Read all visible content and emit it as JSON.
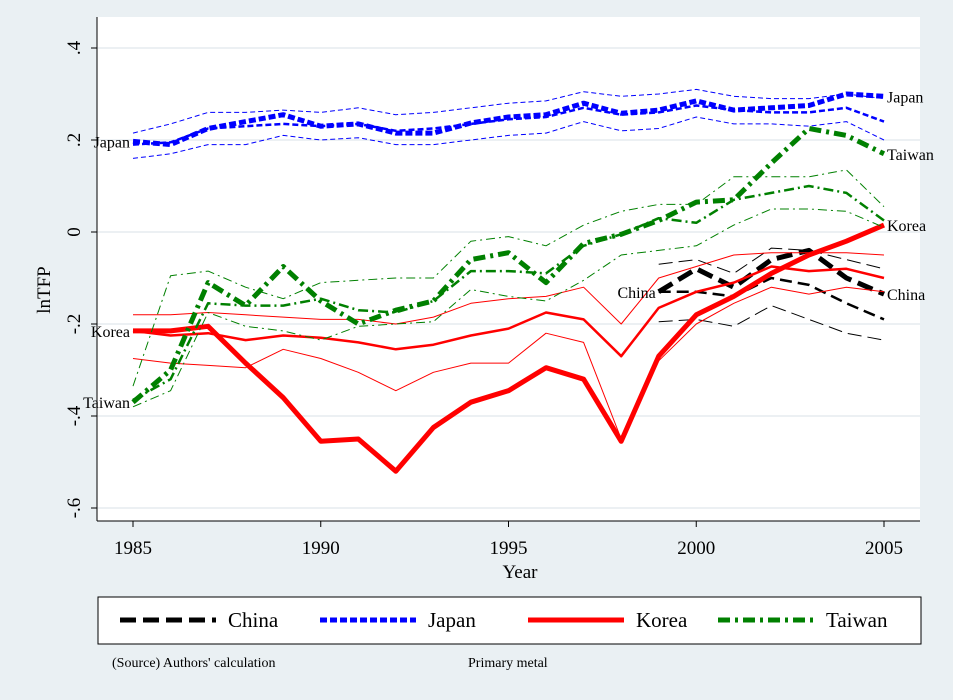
{
  "chart_data": {
    "type": "line",
    "title": "",
    "xlabel": "Year",
    "ylabel": "lnTFP",
    "xlim": [
      1985,
      2005
    ],
    "ylim": [
      -0.6,
      0.4
    ],
    "x_ticks": [
      1985,
      1990,
      1995,
      2000,
      2005
    ],
    "x_tick_labels": [
      "1985",
      "1990",
      "1995",
      "2000",
      "2005"
    ],
    "y_ticks": [
      -0.6,
      -0.4,
      -0.2,
      0,
      0.2,
      0.4
    ],
    "y_tick_labels": [
      "-.6",
      "-.4",
      "-.2",
      "0",
      ".2",
      ".4"
    ],
    "grid": true,
    "legend_position": "bottom",
    "series": [
      {
        "name": "China",
        "color": "#000000",
        "dash": "long-dash",
        "x": [
          1999,
          2000,
          2001,
          2002,
          2003,
          2004,
          2005
        ],
        "values": [
          -0.13,
          -0.08,
          -0.12,
          -0.06,
          -0.04,
          -0.1,
          -0.135
        ],
        "bands": [
          {
            "kind": "point",
            "values": [
              -0.13,
              -0.13,
              -0.14,
              -0.1,
              -0.115,
              -0.155,
              -0.19
            ]
          },
          {
            "kind": "upper",
            "values": [
              -0.07,
              -0.06,
              -0.09,
              -0.035,
              -0.04,
              -0.06,
              -0.08
            ]
          },
          {
            "kind": "lower",
            "values": [
              -0.195,
              -0.19,
              -0.205,
              -0.16,
              -0.19,
              -0.22,
              -0.235
            ]
          }
        ]
      },
      {
        "name": "Japan",
        "color": "#0000ff",
        "dash": "short-dash",
        "x": [
          1985,
          1986,
          1987,
          1988,
          1989,
          1990,
          1991,
          1992,
          1993,
          1994,
          1995,
          1996,
          1997,
          1998,
          1999,
          2000,
          2001,
          2002,
          2003,
          2004,
          2005
        ],
        "values": [
          0.197,
          0.19,
          0.225,
          0.24,
          0.255,
          0.23,
          0.235,
          0.215,
          0.215,
          0.237,
          0.25,
          0.255,
          0.28,
          0.258,
          0.265,
          0.285,
          0.265,
          0.27,
          0.275,
          0.3,
          0.295
        ],
        "bands": [
          {
            "kind": "point",
            "values": [
              0.19,
              0.195,
              0.225,
              0.23,
              0.235,
              0.23,
              0.235,
              0.22,
              0.225,
              0.235,
              0.245,
              0.25,
              0.27,
              0.255,
              0.26,
              0.275,
              0.265,
              0.26,
              0.26,
              0.27,
              0.24
            ]
          },
          {
            "kind": "upper",
            "values": [
              0.215,
              0.235,
              0.26,
              0.26,
              0.265,
              0.26,
              0.27,
              0.255,
              0.26,
              0.27,
              0.28,
              0.285,
              0.305,
              0.295,
              0.3,
              0.31,
              0.295,
              0.29,
              0.29,
              0.3,
              0.29
            ]
          },
          {
            "kind": "lower",
            "values": [
              0.16,
              0.17,
              0.19,
              0.19,
              0.21,
              0.2,
              0.205,
              0.19,
              0.19,
              0.2,
              0.21,
              0.215,
              0.24,
              0.22,
              0.225,
              0.25,
              0.235,
              0.235,
              0.23,
              0.24,
              0.2
            ]
          }
        ]
      },
      {
        "name": "Korea",
        "color": "#ff0000",
        "dash": "solid",
        "x": [
          1985,
          1986,
          1987,
          1988,
          1989,
          1990,
          1991,
          1992,
          1993,
          1994,
          1995,
          1996,
          1997,
          1998,
          1999,
          2000,
          2001,
          2002,
          2003,
          2004,
          2005
        ],
        "values": [
          -0.215,
          -0.215,
          -0.205,
          -0.285,
          -0.36,
          -0.455,
          -0.45,
          -0.52,
          -0.425,
          -0.37,
          -0.345,
          -0.295,
          -0.32,
          -0.455,
          -0.27,
          -0.18,
          -0.14,
          -0.09,
          -0.05,
          -0.02,
          0.015
        ],
        "bands": [
          {
            "kind": "point",
            "values": [
              -0.215,
              -0.225,
              -0.22,
              -0.235,
              -0.225,
              -0.23,
              -0.24,
              -0.255,
              -0.245,
              -0.225,
              -0.21,
              -0.175,
              -0.19,
              -0.27,
              -0.165,
              -0.13,
              -0.11,
              -0.075,
              -0.085,
              -0.08,
              -0.1
            ]
          },
          {
            "kind": "upper",
            "values": [
              -0.18,
              -0.18,
              -0.175,
              -0.18,
              -0.185,
              -0.19,
              -0.19,
              -0.2,
              -0.185,
              -0.155,
              -0.145,
              -0.14,
              -0.12,
              -0.2,
              -0.1,
              -0.075,
              -0.05,
              -0.045,
              -0.045,
              -0.045,
              -0.05
            ]
          },
          {
            "kind": "lower",
            "values": [
              -0.275,
              -0.285,
              -0.29,
              -0.295,
              -0.255,
              -0.275,
              -0.305,
              -0.345,
              -0.305,
              -0.285,
              -0.285,
              -0.22,
              -0.24,
              -0.45,
              -0.28,
              -0.2,
              -0.155,
              -0.12,
              -0.135,
              -0.12,
              -0.13
            ]
          }
        ]
      },
      {
        "name": "Taiwan",
        "color": "#008000",
        "dash": "dash-dot",
        "x": [
          1985,
          1986,
          1987,
          1988,
          1989,
          1990,
          1991,
          1992,
          1993,
          1994,
          1995,
          1996,
          1997,
          1998,
          1999,
          2000,
          2001,
          2002,
          2003,
          2004,
          2005
        ],
        "values": [
          -0.37,
          -0.3,
          -0.11,
          -0.16,
          -0.075,
          -0.15,
          -0.2,
          -0.17,
          -0.15,
          -0.06,
          -0.045,
          -0.11,
          -0.025,
          -0.005,
          0.025,
          0.065,
          0.07,
          0.15,
          0.225,
          0.21,
          0.17
        ],
        "bands": [
          {
            "kind": "point",
            "values": [
              -0.365,
              -0.32,
              -0.155,
              -0.16,
              -0.16,
              -0.145,
              -0.17,
              -0.175,
              -0.15,
              -0.085,
              -0.085,
              -0.09,
              -0.03,
              -0.005,
              0.03,
              0.02,
              0.07,
              0.085,
              0.1,
              0.085,
              0.025
            ]
          },
          {
            "kind": "upper",
            "values": [
              -0.335,
              -0.095,
              -0.085,
              -0.12,
              -0.145,
              -0.11,
              -0.105,
              -0.1,
              -0.1,
              -0.02,
              -0.01,
              -0.03,
              0.015,
              0.045,
              0.06,
              0.06,
              0.12,
              0.12,
              0.12,
              0.135,
              0.055
            ]
          },
          {
            "kind": "lower",
            "values": [
              -0.38,
              -0.345,
              -0.175,
              -0.205,
              -0.215,
              -0.235,
              -0.205,
              -0.2,
              -0.195,
              -0.125,
              -0.14,
              -0.15,
              -0.105,
              -0.05,
              -0.04,
              -0.03,
              0.015,
              0.05,
              0.05,
              0.045,
              0.01
            ]
          }
        ]
      }
    ],
    "line_labels": [
      {
        "text": "Japan",
        "series": "Japan",
        "at": "start"
      },
      {
        "text": "Japan",
        "series": "Japan",
        "at": "end"
      },
      {
        "text": "Korea",
        "series": "Korea",
        "at": "start"
      },
      {
        "text": "Korea",
        "series": "Korea",
        "at": "end"
      },
      {
        "text": "Taiwan",
        "series": "Taiwan",
        "at": "start"
      },
      {
        "text": "Taiwan",
        "series": "Taiwan",
        "at": "end"
      },
      {
        "text": "China",
        "series": "China",
        "at": "start"
      },
      {
        "text": "China",
        "series": "China",
        "at": "end"
      }
    ],
    "notes": [
      "(Source) Authors' calculation",
      "Primary metal"
    ]
  },
  "colors": {
    "background": "#eaf0f3",
    "plot_background": "#ffffff",
    "grid": "#e6ecef"
  }
}
